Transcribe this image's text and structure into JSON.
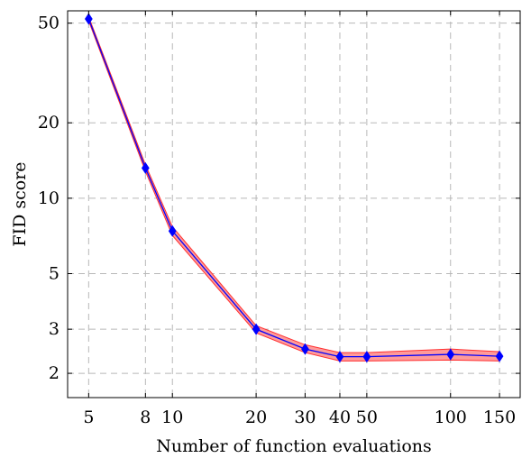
{
  "chart_data": {
    "type": "line",
    "title": "",
    "xlabel": "Number of function evaluations",
    "ylabel": "FID score",
    "x_scale": "log",
    "y_scale": "log",
    "xlim": [
      4.2,
      178
    ],
    "ylim": [
      1.6,
      56
    ],
    "grid": true,
    "x_ticks": [
      5,
      8,
      10,
      20,
      30,
      40,
      50,
      100,
      150
    ],
    "x_tick_labels": [
      "5",
      "8",
      "10",
      "20",
      "30",
      "40",
      "50",
      "100",
      "150"
    ],
    "y_ticks": [
      2,
      3,
      5,
      10,
      20,
      50
    ],
    "y_tick_labels": [
      "2",
      "3",
      "5",
      "10",
      "20",
      "50"
    ],
    "series": [
      {
        "x": [
          5,
          8,
          10,
          20,
          30,
          40,
          50,
          100,
          150
        ],
        "y": [
          52,
          13.2,
          7.4,
          3.0,
          2.5,
          2.33,
          2.33,
          2.38,
          2.34
        ],
        "y_upper": [
          53,
          13.6,
          7.7,
          3.1,
          2.6,
          2.42,
          2.42,
          2.5,
          2.44
        ],
        "y_lower": [
          51,
          12.8,
          7.1,
          2.9,
          2.42,
          2.24,
          2.24,
          2.26,
          2.24
        ],
        "line_color": "#0000ff",
        "band_color": "#ff9a9a",
        "band_edge_color": "#ff3030",
        "marker": "diamond",
        "marker_color": "#0000ff"
      }
    ]
  }
}
